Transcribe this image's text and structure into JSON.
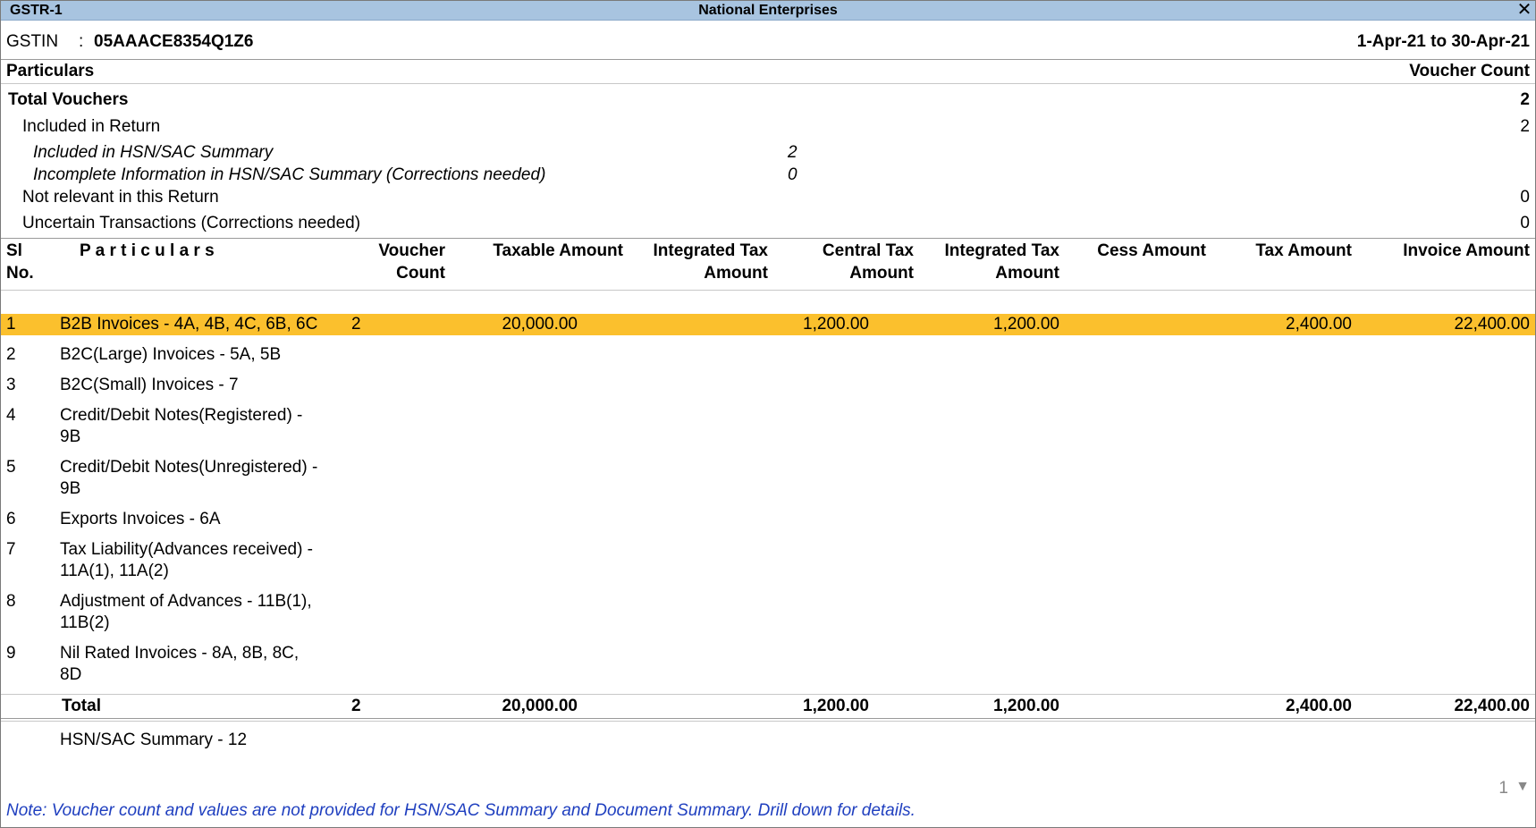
{
  "titlebar": {
    "report_name": "GSTR-1",
    "company_name": "National Enterprises",
    "close_icon": "✕"
  },
  "header": {
    "gstin_label": "GSTIN",
    "gstin_sep": ":",
    "gstin_value": "05AAACE8354Q1Z6",
    "period": "1-Apr-21 to 30-Apr-21"
  },
  "summary": {
    "particulars_header": "Particulars",
    "voucher_count_header": "Voucher Count",
    "total_vouchers_label": "Total Vouchers",
    "total_vouchers_value": "2",
    "included_label": "Included in Return",
    "included_value": "2",
    "hsn_included_label": "Included in HSN/SAC Summary",
    "hsn_included_value": "2",
    "hsn_incomplete_label": "Incomplete Information in HSN/SAC Summary (Corrections needed)",
    "hsn_incomplete_value": "0",
    "not_relevant_label": "Not relevant in this Return",
    "not_relevant_value": "0",
    "uncertain_label": "Uncertain Transactions (Corrections needed)",
    "uncertain_value": "0"
  },
  "table": {
    "columns": {
      "sl_no_1": "Sl",
      "sl_no_2": "No.",
      "particulars": "P a r t i c u l a r s",
      "voucher_count_1": "Voucher",
      "voucher_count_2": "Count",
      "taxable_amount": "Taxable Amount",
      "integrated_tax_1": "Integrated Tax",
      "integrated_tax_2": "Amount",
      "central_tax_1": "Central Tax",
      "central_tax_2": "Amount",
      "state_tax_1": "Integrated Tax",
      "state_tax_2": "Amount",
      "cess_amount": "Cess Amount",
      "tax_amount": "Tax Amount",
      "invoice_amount": "Invoice Amount"
    },
    "rows": [
      {
        "sl": "1",
        "line1": "B2B Invoices - 4A, 4B, 4C, 6B, 6C",
        "line2": "",
        "voucher_count": "2",
        "taxable": "20,000.00",
        "integrated": "",
        "central": "1,200.00",
        "state": "1,200.00",
        "cess": "",
        "tax": "2,400.00",
        "invoice": "22,400.00"
      },
      {
        "sl": "2",
        "line1": "B2C(Large) Invoices - 5A, 5B",
        "line2": ""
      },
      {
        "sl": "3",
        "line1": "B2C(Small) Invoices - 7",
        "line2": ""
      },
      {
        "sl": "4",
        "line1": "Credit/Debit Notes(Registered) -",
        "line2": "9B"
      },
      {
        "sl": "5",
        "line1": "Credit/Debit Notes(Unregistered) -",
        "line2": "9B"
      },
      {
        "sl": "6",
        "line1": "Exports Invoices - 6A",
        "line2": ""
      },
      {
        "sl": "7",
        "line1": "Tax Liability(Advances received) -",
        "line2": "11A(1), 11A(2)"
      },
      {
        "sl": "8",
        "line1": "Adjustment of Advances - 11B(1),",
        "line2": "11B(2)"
      },
      {
        "sl": "9",
        "line1": "Nil Rated Invoices - 8A, 8B, 8C,",
        "line2": "8D"
      }
    ],
    "total": {
      "label": "Total",
      "voucher_count": "2",
      "taxable": "20,000.00",
      "central": "1,200.00",
      "state": "1,200.00",
      "tax": "2,400.00",
      "invoice": "22,400.00"
    },
    "hsn_summary_label": "HSN/SAC Summary - 12"
  },
  "footer": {
    "page_number": "1",
    "scroll_icon": "▼",
    "note": "Note: Voucher count and values are not provided for HSN/SAC Summary and Document Summary. Drill down for details."
  },
  "colors": {
    "titlebar_bg": "#a8c4e0",
    "selected_row": "#fbc02d",
    "note_text": "#1f3fbf"
  }
}
